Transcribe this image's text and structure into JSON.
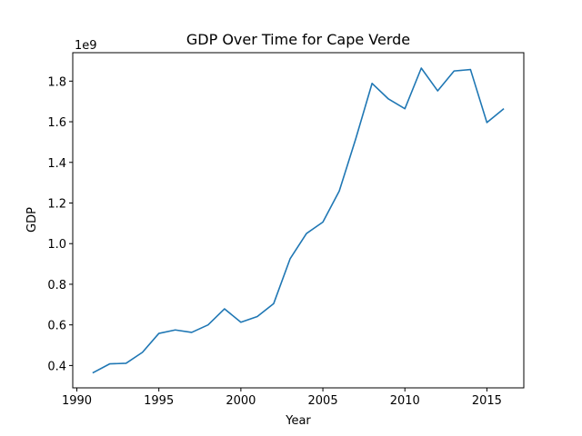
{
  "chart_data": {
    "type": "line",
    "title": "GDP Over Time for Cape Verde",
    "xlabel": "Year",
    "ylabel": "GDP",
    "y_offset_label": "1e9",
    "xlim": [
      1989.75,
      2017.25
    ],
    "ylim": [
      0.29,
      1.94
    ],
    "y_scale_factor": 1000000000,
    "xticks": [
      1990,
      1995,
      2000,
      2005,
      2010,
      2015
    ],
    "yticks": [
      0.4,
      0.6,
      0.8,
      1.0,
      1.2,
      1.4,
      1.6,
      1.8
    ],
    "ytick_labels": [
      "0.4",
      "0.6",
      "0.8",
      "1.0",
      "1.2",
      "1.4",
      "1.6",
      "1.8"
    ],
    "grid": false,
    "line_color": "#1f77b4",
    "series": [
      {
        "x": [
          1991,
          1992,
          1993,
          1994,
          1995,
          1996,
          1997,
          1998,
          1999,
          2000,
          2001,
          2002,
          2003,
          2004,
          2005,
          2006,
          2007,
          2008,
          2009,
          2010,
          2011,
          2012,
          2013,
          2014,
          2015,
          2016
        ],
        "y": [
          0.365,
          0.408,
          0.411,
          0.465,
          0.558,
          0.575,
          0.563,
          0.6,
          0.679,
          0.613,
          0.641,
          0.705,
          0.925,
          1.05,
          1.106,
          1.259,
          1.515,
          1.789,
          1.712,
          1.664,
          1.864,
          1.752,
          1.85,
          1.857,
          1.596,
          1.662
        ]
      }
    ]
  }
}
